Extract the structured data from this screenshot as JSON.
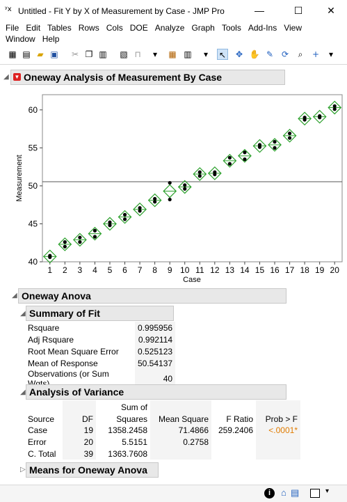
{
  "window": {
    "title": "Untitled - Fit Y by X of Measurement by Case - JMP Pro"
  },
  "menu": {
    "row1": [
      "File",
      "Edit",
      "Tables",
      "Rows",
      "Cols",
      "DOE",
      "Analyze",
      "Graph",
      "Tools",
      "Add-Ins",
      "View"
    ],
    "row2": [
      "Window",
      "Help"
    ]
  },
  "report": {
    "title": "Oneway Analysis of Measurement By Case",
    "anova_title": "Oneway Anova",
    "summary": {
      "title": "Summary of Fit",
      "rows": [
        {
          "label": "Rsquare",
          "value": "0.995956"
        },
        {
          "label": "Adj Rsquare",
          "value": "0.992114"
        },
        {
          "label": "Root Mean Square Error",
          "value": "0.525123"
        },
        {
          "label": "Mean of Response",
          "value": "50.54137"
        },
        {
          "label": "Observations (or Sum Wgts)",
          "value": "40"
        }
      ]
    },
    "aov": {
      "title": "Analysis of Variance",
      "headers": {
        "source": "Source",
        "df": "DF",
        "ss_top": "Sum of",
        "ss_bottom": "Squares",
        "ms": "Mean Square",
        "f": "F Ratio",
        "p": "Prob > F"
      },
      "rows": [
        {
          "source": "Case",
          "df": "19",
          "ss": "1358.2458",
          "ms": "71.4866",
          "f": "259.2406",
          "p": "<.0001*"
        },
        {
          "source": "Error",
          "df": "20",
          "ss": "5.5151",
          "ms": "0.2758",
          "f": "",
          "p": ""
        },
        {
          "source": "C. Total",
          "df": "39",
          "ss": "1363.7608",
          "ms": "",
          "f": "",
          "p": ""
        }
      ],
      "p_color": "#e07b00"
    },
    "means_title": "Means for Oneway Anova"
  },
  "chart_data": {
    "type": "scatter",
    "xlabel": "Case",
    "ylabel": "Measurement",
    "categories": [
      "1",
      "2",
      "3",
      "4",
      "5",
      "6",
      "7",
      "8",
      "9",
      "10",
      "11",
      "12",
      "13",
      "14",
      "15",
      "16",
      "17",
      "18",
      "19",
      "20"
    ],
    "ylim": [
      40,
      62
    ],
    "yticks": [
      40,
      45,
      50,
      55,
      60
    ],
    "grand_mean": 50.54,
    "points": [
      [
        40.6,
        40.8
      ],
      [
        42.0,
        42.6
      ],
      [
        42.6,
        43.2
      ],
      [
        43.3,
        44.1
      ],
      [
        44.8,
        45.2
      ],
      [
        45.6,
        46.2
      ],
      [
        46.7,
        47.1
      ],
      [
        47.9,
        48.3
      ],
      [
        48.2,
        50.4
      ],
      [
        49.6,
        50.1
      ],
      [
        51.3,
        51.8
      ],
      [
        51.5,
        51.8
      ],
      [
        52.9,
        53.7
      ],
      [
        53.5,
        54.4
      ],
      [
        55.1,
        55.4
      ],
      [
        55.0,
        55.8
      ],
      [
        56.3,
        56.9
      ],
      [
        58.7,
        59.0
      ],
      [
        59.0,
        59.2
      ],
      [
        60.1,
        60.5
      ]
    ],
    "means": [
      40.7,
      42.3,
      42.9,
      43.7,
      45.0,
      45.9,
      46.9,
      48.1,
      49.3,
      49.85,
      51.55,
      51.65,
      53.3,
      53.95,
      55.25,
      55.4,
      56.6,
      58.85,
      59.1,
      60.3
    ],
    "diamond_half": 0.83,
    "colors": {
      "diamond": "#2ca02c",
      "points": "#000000",
      "mean_line": "#555555"
    }
  }
}
